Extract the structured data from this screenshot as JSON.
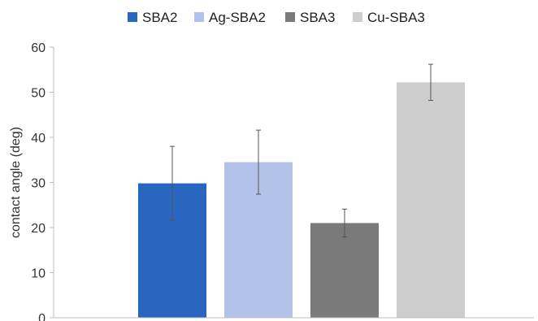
{
  "chart_data": {
    "type": "bar",
    "title": "",
    "xlabel": "",
    "ylabel": "contact angle (deg)",
    "ylim": [
      0,
      60
    ],
    "yticks": [
      0,
      10,
      20,
      30,
      40,
      50,
      60
    ],
    "grid": false,
    "legend_position": "top",
    "series": [
      {
        "name": "SBA2",
        "value": 29.8,
        "error": 8.2,
        "color": "#2866c0"
      },
      {
        "name": "Ag-SBA2",
        "value": 34.5,
        "error": 7.1,
        "color": "#b2c2e8"
      },
      {
        "name": "SBA3",
        "value": 21.0,
        "error": 3.1,
        "color": "#7a7a7a"
      },
      {
        "name": "Cu-SBA3",
        "value": 52.2,
        "error": 4.0,
        "color": "#cdcdcd"
      }
    ]
  }
}
